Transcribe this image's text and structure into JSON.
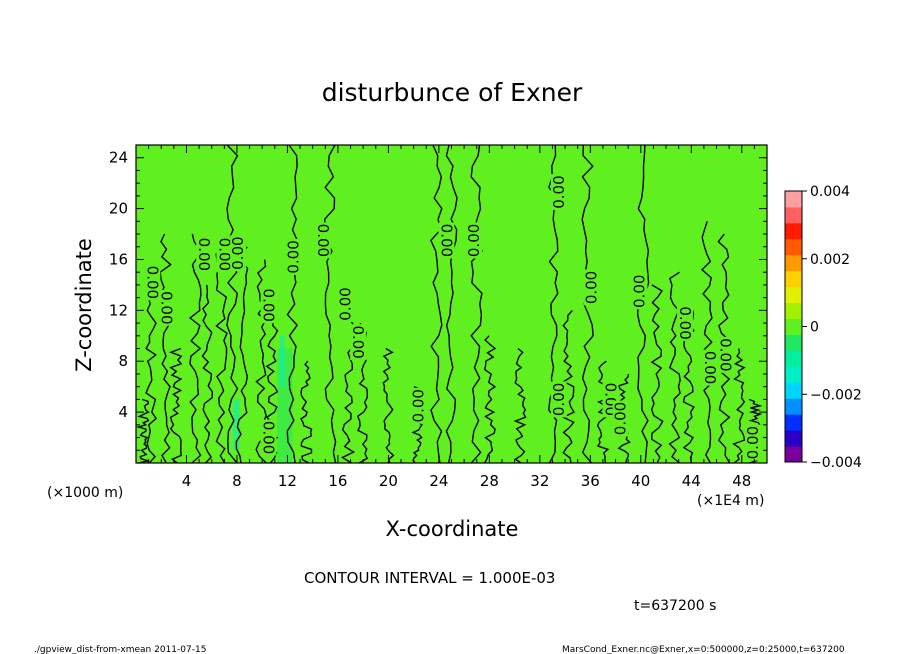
{
  "chart_data": {
    "type": "heatmap",
    "title": "disturbunce of Exner",
    "xlabel": "X-coordinate",
    "ylabel": "Z-coordinate",
    "x_unit": "(×1E4 m)",
    "y_unit": "(×1000 m)",
    "xlim": [
      0,
      50
    ],
    "ylim": [
      0,
      25
    ],
    "x_ticks": [
      4,
      8,
      12,
      16,
      20,
      24,
      28,
      32,
      36,
      40,
      44,
      48
    ],
    "y_ticks": [
      4,
      8,
      12,
      16,
      20,
      24
    ],
    "colorbar": {
      "range": [
        -0.004,
        0.004
      ],
      "tick_values": [
        0.004,
        0.002,
        0,
        -0.002,
        -0.004
      ],
      "tick_labels": [
        "0.004",
        "0.002",
        "0",
        "−0.002",
        "−0.004"
      ],
      "colors": [
        "#7b0099",
        "#2a00c8",
        "#0030ff",
        "#0090ff",
        "#00d4ff",
        "#00eec8",
        "#00f0a0",
        "#20e860",
        "#60f020",
        "#a0f000",
        "#e0f000",
        "#ffd000",
        "#ff9a00",
        "#ff5a00",
        "#ff1a00",
        "#ff6060",
        "#ffa0a0"
      ]
    },
    "background_value": 0,
    "contour_interval": "1.000E-03",
    "contour_labels": [
      {
        "x": 1.3,
        "y": 14.2,
        "text": "0.00",
        "angle": 90
      },
      {
        "x": 2.4,
        "y": 12.2,
        "text": "0.00",
        "angle": 90
      },
      {
        "x": 5.4,
        "y": 16.4,
        "text": "0.00",
        "angle": 90
      },
      {
        "x": 7.0,
        "y": 16.4,
        "text": "0.00",
        "angle": 90
      },
      {
        "x": 8.1,
        "y": 16.5,
        "text": "0.00",
        "angle": -90
      },
      {
        "x": 10.5,
        "y": 12.4,
        "text": "0.00",
        "angle": 90
      },
      {
        "x": 10.5,
        "y": 2.0,
        "text": "0.00",
        "angle": 90
      },
      {
        "x": 12.5,
        "y": 16.2,
        "text": "0.00",
        "angle": -90
      },
      {
        "x": 14.8,
        "y": 17.5,
        "text": "0.00",
        "angle": 90
      },
      {
        "x": 16.6,
        "y": 12.5,
        "text": "0.00",
        "angle": -90
      },
      {
        "x": 17.6,
        "y": 9.5,
        "text": "0.00",
        "angle": 90
      },
      {
        "x": 22.4,
        "y": 4.5,
        "text": "0.00",
        "angle": -90
      },
      {
        "x": 24.6,
        "y": 17.5,
        "text": "0.00",
        "angle": 90
      },
      {
        "x": 26.8,
        "y": 17.5,
        "text": "0.00",
        "angle": -90
      },
      {
        "x": 33.5,
        "y": 21.3,
        "text": "0.00",
        "angle": -90
      },
      {
        "x": 33.5,
        "y": 5.0,
        "text": "0.00",
        "angle": -90
      },
      {
        "x": 36.1,
        "y": 13.8,
        "text": "0.00",
        "angle": -90
      },
      {
        "x": 37.6,
        "y": 5.0,
        "text": "0.00",
        "angle": 90
      },
      {
        "x": 38.4,
        "y": 3.5,
        "text": "0.00",
        "angle": -90
      },
      {
        "x": 39.9,
        "y": 13.5,
        "text": "0.00",
        "angle": -90
      },
      {
        "x": 43.5,
        "y": 11.0,
        "text": "0.00",
        "angle": 90
      },
      {
        "x": 45.5,
        "y": 7.5,
        "text": "0.00",
        "angle": 90
      },
      {
        "x": 46.7,
        "y": 8.5,
        "text": "0.00",
        "angle": 90
      },
      {
        "x": 48.9,
        "y": 1.6,
        "text": "0.00",
        "angle": -90
      }
    ]
  },
  "texts": {
    "contour_interval_label": "CONTOUR INTERVAL = 1.000E-03",
    "time_label": "t=637200 s",
    "footer_left": "./gpview_dist-from-xmean   2011-07-15",
    "footer_right": "MarsCond_Exner.nc@Exner,x=0:500000,z=0:25000,t=637200"
  }
}
